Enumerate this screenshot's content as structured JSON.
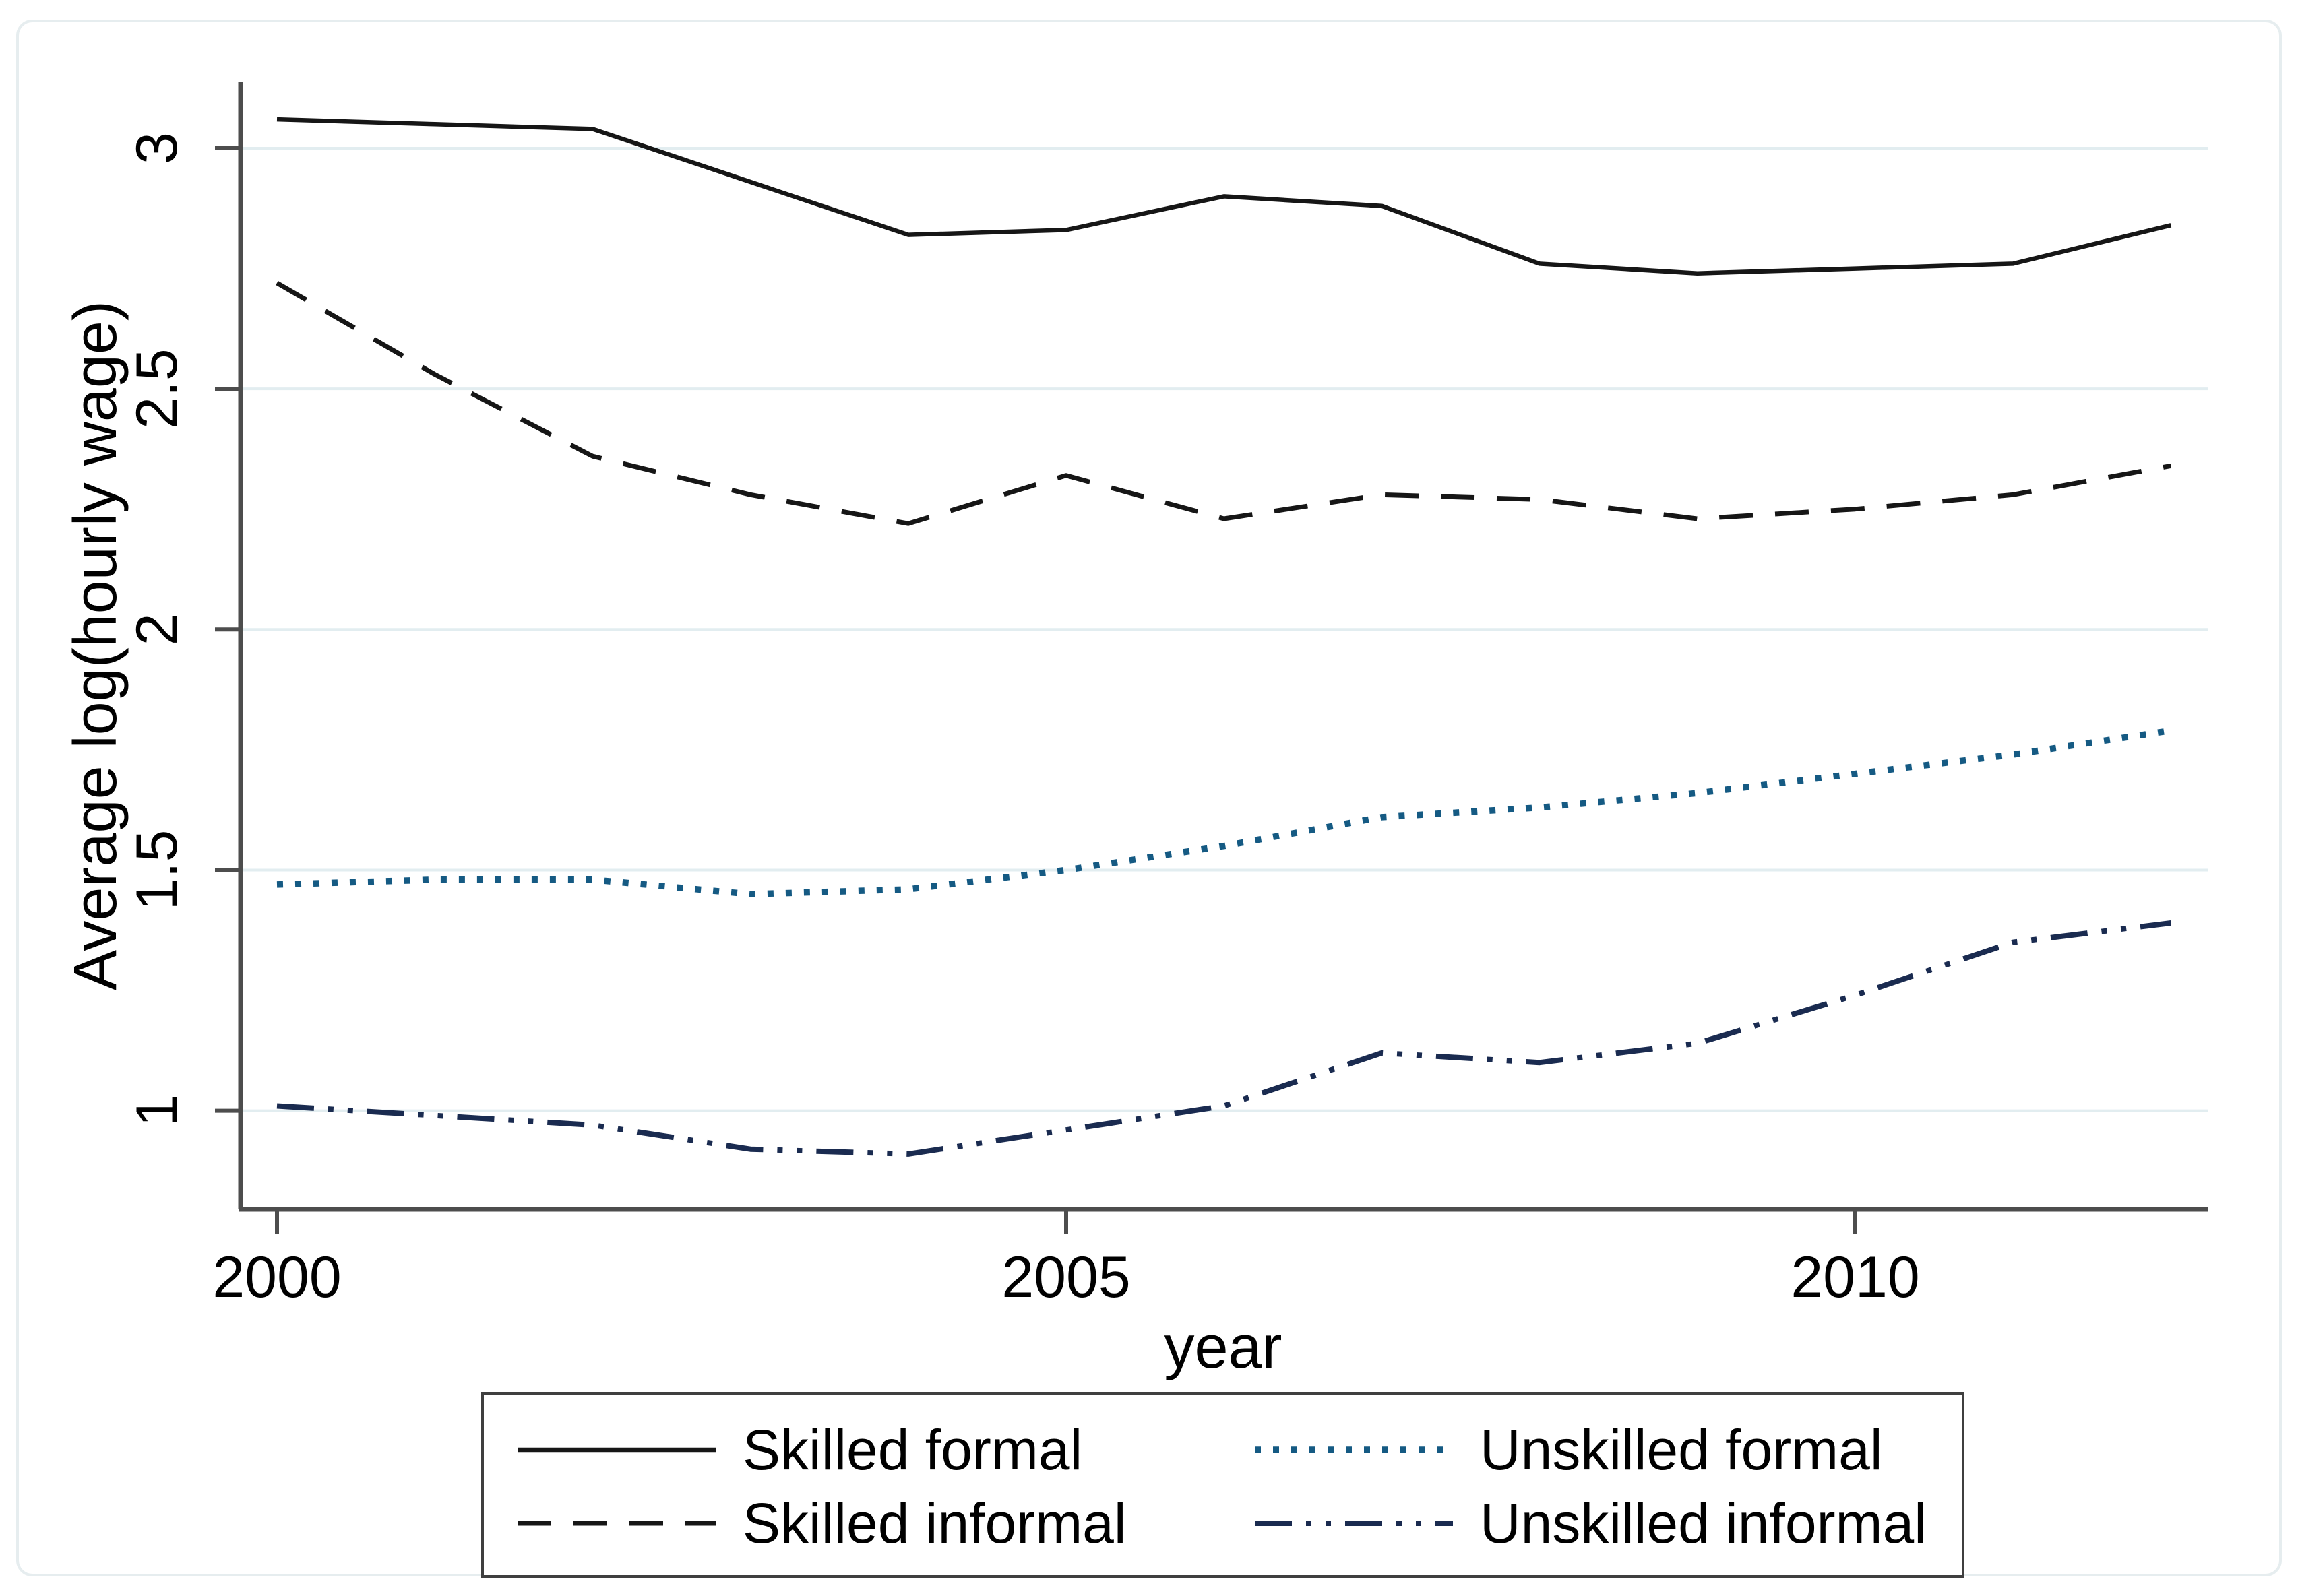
{
  "chart_data": {
    "type": "line",
    "title": "",
    "xlabel": "year",
    "ylabel": "Average log(hourly wage)",
    "x": [
      2000,
      2001,
      2002,
      2003,
      2004,
      2005,
      2006,
      2007,
      2008,
      2009,
      2010,
      2011,
      2012
    ],
    "x_ticks": [
      2000,
      2005,
      2010
    ],
    "x_tick_labels": [
      "2000",
      "2005",
      "2010"
    ],
    "y_ticks": [
      3,
      2.5,
      2,
      1.5,
      1
    ],
    "y_tick_labels": [
      "3",
      "2.5",
      "2",
      "1.5",
      "1"
    ],
    "ylim": [
      0.795,
      3.25
    ],
    "xlim": [
      1999.77,
      2012.23
    ],
    "grid": "horizontal-only",
    "legend_position": "bottom-box-two-columns",
    "series": [
      {
        "name": "Skilled formal",
        "style": "solid",
        "color": "#161616",
        "values": [
          3.06,
          3.05,
          3.04,
          2.93,
          2.82,
          2.83,
          2.9,
          2.88,
          2.76,
          2.74,
          2.75,
          2.76,
          2.84
        ]
      },
      {
        "name": "Skilled informal",
        "style": "dashed",
        "color": "#161616",
        "values": [
          2.72,
          2.53,
          2.36,
          2.28,
          2.22,
          2.32,
          2.23,
          2.28,
          2.27,
          2.23,
          2.25,
          2.28,
          2.34
        ]
      },
      {
        "name": "Unskilled formal",
        "style": "dotted",
        "color": "#155a83",
        "values": [
          1.47,
          1.48,
          1.48,
          1.45,
          1.46,
          1.5,
          1.55,
          1.61,
          1.63,
          1.66,
          1.7,
          1.74,
          1.79
        ]
      },
      {
        "name": "Unskilled informal",
        "style": "dash-dot-dot",
        "color": "#1a2b50",
        "values": [
          1.01,
          0.99,
          0.97,
          0.92,
          0.91,
          0.96,
          1.01,
          1.12,
          1.1,
          1.14,
          1.24,
          1.35,
          1.39
        ]
      }
    ],
    "colors": {
      "axis": "#4d4d4d",
      "gridline": "#e2edf0",
      "black_series": "#161616",
      "blue_series": "#155a83",
      "navy_series": "#1a2b50"
    }
  }
}
